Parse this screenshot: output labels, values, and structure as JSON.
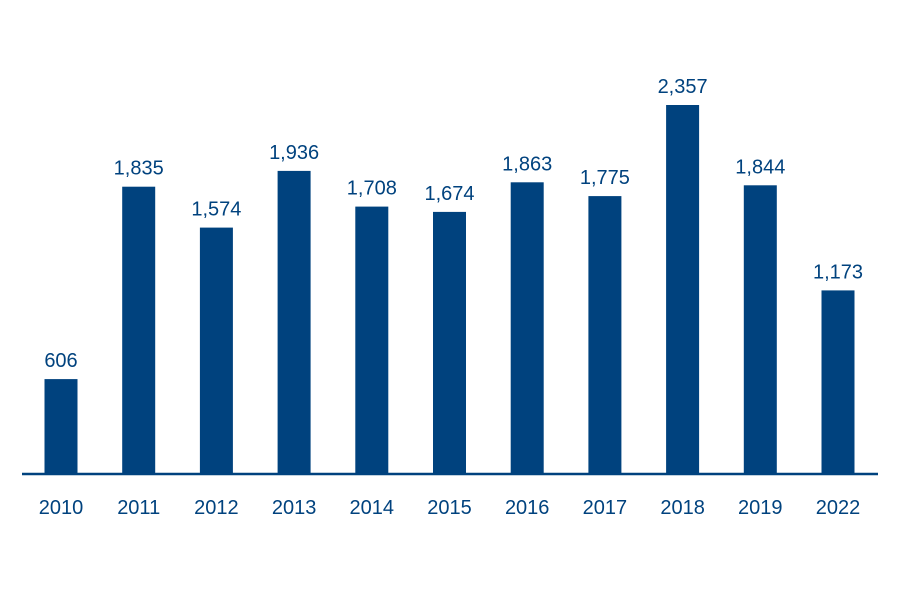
{
  "colors": {
    "bar": "#00427e",
    "axis": "#00427e",
    "label": "#00427e",
    "background": "#ffffff"
  },
  "chart_data": {
    "type": "bar",
    "title": "",
    "xlabel": "",
    "ylabel": "",
    "categories": [
      "2010",
      "2011",
      "2012",
      "2013",
      "2014",
      "2015",
      "2016",
      "2017",
      "2018",
      "2019",
      "2022"
    ],
    "values": [
      606,
      1835,
      1574,
      1936,
      1708,
      1674,
      1863,
      1775,
      2357,
      1844,
      1173
    ],
    "value_labels": [
      "606",
      "1,835",
      "1,574",
      "1,936",
      "1,708",
      "1,674",
      "1,863",
      "1,775",
      "2,357",
      "1,844",
      "1,173"
    ],
    "ylim": [
      0,
      2357
    ],
    "grid": false,
    "legend": "none"
  }
}
